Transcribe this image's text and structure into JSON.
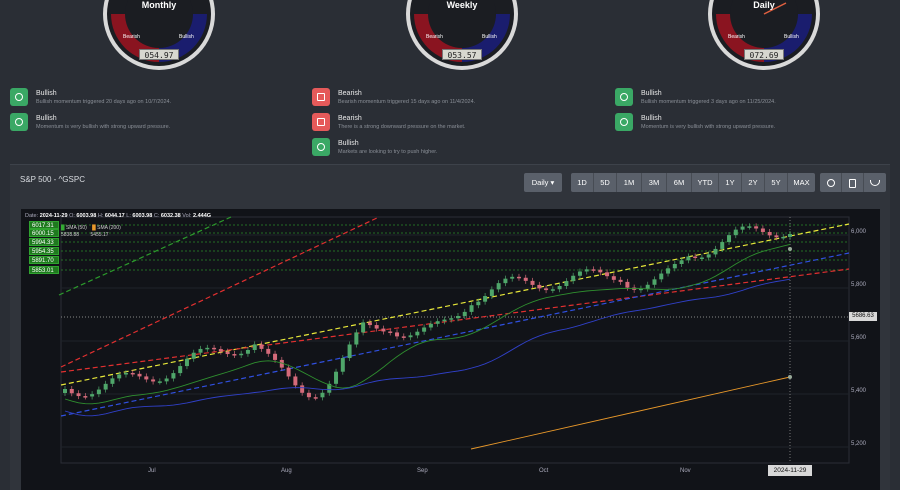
{
  "gauges": [
    {
      "title": "Monthly",
      "value": "054.97",
      "bearish": "Bearish",
      "bullish": "Bullish",
      "needle_pct": 0.55
    },
    {
      "title": "Weekly",
      "value": "053.57",
      "bearish": "Bearish",
      "bullish": "Bullish",
      "needle_pct": 0.54
    },
    {
      "title": "Daily",
      "value": "072.69",
      "bearish": "Bearish",
      "bullish": "Bullish",
      "needle_pct": 0.73
    }
  ],
  "signals": [
    [
      {
        "title": "Bullish",
        "desc": "Bullish momentum triggered 20 days ago on 10/7/2024.",
        "color": "green"
      },
      {
        "title": "Bullish",
        "desc": "Momentum is very bullish with strong upward pressure.",
        "color": "green"
      }
    ],
    [
      {
        "title": "Bearish",
        "desc": "Bearish momentum triggered 15 days ago on 11/4/2024.",
        "color": "red"
      },
      {
        "title": "Bearish",
        "desc": "There is a strong downward pressure on the market.",
        "color": "red"
      },
      {
        "title": "Bullish",
        "desc": "Markets are looking to try to push higher.",
        "color": "green"
      }
    ],
    [
      {
        "title": "Bullish",
        "desc": "Bullish momentum triggered 3 days ago on 11/25/2024.",
        "color": "green"
      },
      {
        "title": "Bullish",
        "desc": "Momentum is very bullish with strong upward pressure.",
        "color": "green"
      }
    ]
  ],
  "panel": {
    "title": "S&P 500 - ^GSPC",
    "interval": "Daily ▾",
    "ranges": [
      "1D",
      "5D",
      "1M",
      "3M",
      "6M",
      "YTD",
      "1Y",
      "2Y",
      "5Y",
      "MAX"
    ],
    "tools": [
      "settings-icon",
      "calculator-icon",
      "scale-icon"
    ]
  },
  "ohlc": {
    "date_label": "Date:",
    "date": "2024-11-29",
    "o_label": "O:",
    "o": "6003.98",
    "h_label": "H:",
    "h": "6044.17",
    "l_label": "L:",
    "l": "6003.98",
    "c_label": "C:",
    "c": "6032.38",
    "v_label": "Vol:",
    "v": "2.444G"
  },
  "sma": {
    "sma50_label": "SMA (50)",
    "sma50": "5838.88",
    "sma200_label": "SMA (200)",
    "sma200": "5455.17"
  },
  "levels": [
    "6017.31",
    "6000.15",
    "5994.33",
    "5954.35",
    "5891.70",
    "5853.01"
  ],
  "current_price": "5686.63",
  "crosshair_date": "2024-11-29",
  "chart_data": {
    "type": "candlestick",
    "y_ticks": [
      "6,000",
      "5,800",
      "5,600",
      "5,400",
      "5,200"
    ],
    "x_ticks": [
      "Jul",
      "Aug",
      "Sep",
      "Oct",
      "Nov"
    ],
    "ylim": [
      5120,
      6060
    ],
    "colors": {
      "up": "#4fa66a",
      "down": "#d46a7a",
      "sma50": "#2f8f2f",
      "sma200": "#e8982a",
      "trend_yellow": "#e8e83a",
      "trend_red": "#e23030",
      "trend_blue": "#3050e0"
    }
  }
}
